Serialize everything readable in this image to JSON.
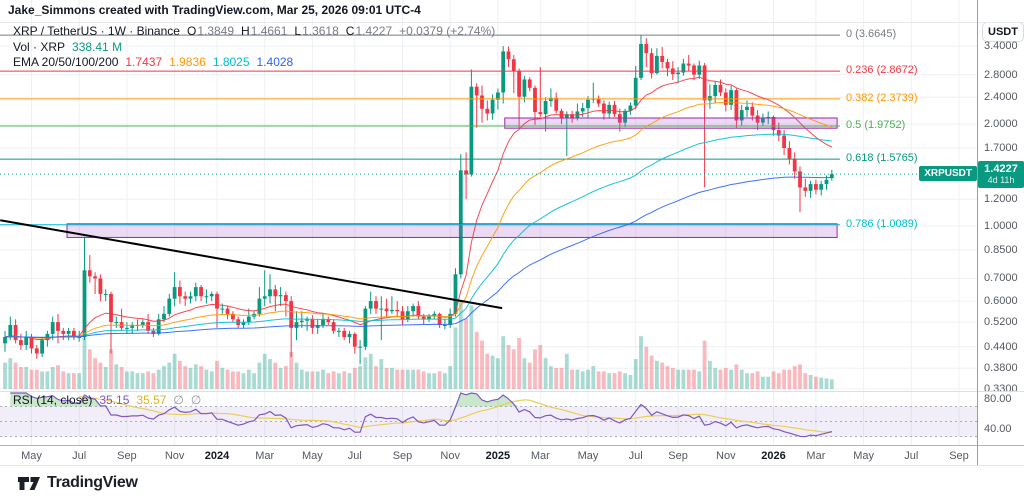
{
  "header": {
    "attribution": "Jake_Simmons created with TradingView.com, Mar 25, 2026 09:01 UTC-4"
  },
  "legend": {
    "symbol": {
      "title": "XRP / TetherUS · 1W · Binance",
      "o_label": "O",
      "open": "1.3849",
      "h_label": "H",
      "high": "1.4661",
      "l_label": "L",
      "low": "1.3618",
      "c_label": "C",
      "close": "1.4227",
      "change": "+0.0379 (+2.74%)"
    },
    "volume": {
      "label": "Vol · XRP",
      "value": "338.41 M"
    },
    "ema": {
      "label": "EMA 20/50/100/200",
      "v20": "1.7437",
      "v50": "1.9836",
      "v100": "1.8025",
      "v200": "1.4028"
    }
  },
  "rsi_legend": {
    "label": "RSI (14, close)",
    "value": "35.15",
    "ma_value": "35.57",
    "toggle1": "∅",
    "toggle2": "∅"
  },
  "price_axis": {
    "currency": "USDT"
  },
  "price_badge": {
    "symbol": "XRPUSDT",
    "price": "1.4227",
    "countdown": "4d 11h"
  },
  "footer": {
    "logo_text": "TradingView"
  },
  "colors": {
    "up": "#089981",
    "down": "#f23645",
    "ema20": "#f23645",
    "ema50": "#ff9800",
    "ema100": "#00bcd4",
    "ema200": "#2962ff",
    "rsi": "#7e57c2",
    "rsi_ma": "#d8b222",
    "trendline": "#000000",
    "zone": "#9c27b0",
    "current_price": "#089981"
  },
  "chart_data": {
    "type": "candlestick",
    "symbol": "XRPUSDT",
    "exchange": "Binance",
    "interval": "1W",
    "scale": "log",
    "first_week": "2023-03-27",
    "current_price": 1.4227,
    "ema_periods": [
      20,
      50,
      100,
      200
    ],
    "rsi": {
      "period": 14,
      "overbought": 70,
      "middle": 50,
      "oversold": 30,
      "scale_ticks": [
        {
          "label": "80.00",
          "value": 80
        },
        {
          "label": "40.00",
          "value": 40
        }
      ]
    },
    "fib_levels": [
      {
        "label": "0 (3.6645)",
        "price": 3.6645,
        "color": "#787b86"
      },
      {
        "label": "0.236 (2.8672)",
        "price": 2.8672,
        "color": "#f23645"
      },
      {
        "label": "0.382 (2.3739)",
        "price": 2.3739,
        "color": "#ff9800"
      },
      {
        "label": "0.5 (1.9752)",
        "price": 1.9752,
        "color": "#4caf50"
      },
      {
        "label": "0.618 (1.5765)",
        "price": 1.5765,
        "color": "#089981"
      },
      {
        "label": "0.786 (1.0089)",
        "price": 1.0089,
        "color": "#00bcd4"
      }
    ],
    "zones": [
      {
        "week_from": 11.7,
        "week_to": 157,
        "price_top": 1.015,
        "price_bottom": 0.925
      },
      {
        "week_from": 94.3,
        "week_to": 157,
        "price_top": 2.085,
        "price_bottom": 1.945
      }
    ],
    "trendline": {
      "week_from": -0.9,
      "price_from": 1.04,
      "week_to": 93.8,
      "price_to": 0.572
    },
    "price_ticks": [
      {
        "label": "3.4000",
        "price": 3.4
      },
      {
        "label": "2.8000",
        "price": 2.8
      },
      {
        "label": "2.4000",
        "price": 2.4
      },
      {
        "label": "2.0000",
        "price": 2.0
      },
      {
        "label": "1.7000",
        "price": 1.7
      },
      {
        "label": "1.2000",
        "price": 1.2
      },
      {
        "label": "1.0000",
        "price": 1.0
      },
      {
        "label": "0.8500",
        "price": 0.85
      },
      {
        "label": "0.7000",
        "price": 0.7
      },
      {
        "label": "0.6000",
        "price": 0.6
      },
      {
        "label": "0.5200",
        "price": 0.52
      },
      {
        "label": "0.4400",
        "price": 0.44
      },
      {
        "label": "0.3800",
        "price": 0.38
      },
      {
        "label": "0.3300",
        "price": 0.33
      }
    ],
    "time_ticks": [
      {
        "label": "May",
        "week": 5
      },
      {
        "label": "Jul",
        "week": 14
      },
      {
        "label": "Sep",
        "week": 23
      },
      {
        "label": "Nov",
        "week": 32
      },
      {
        "label": "2024",
        "week": 40,
        "year": true
      },
      {
        "label": "Mar",
        "week": 49
      },
      {
        "label": "May",
        "week": 58
      },
      {
        "label": "Jul",
        "week": 66
      },
      {
        "label": "Sep",
        "week": 75
      },
      {
        "label": "Nov",
        "week": 84
      },
      {
        "label": "2025",
        "week": 93,
        "year": true
      },
      {
        "label": "Mar",
        "week": 101
      },
      {
        "label": "May",
        "week": 110
      },
      {
        "label": "Jul",
        "week": 119
      },
      {
        "label": "Sep",
        "week": 127
      },
      {
        "label": "Nov",
        "week": 136
      },
      {
        "label": "2026",
        "week": 145,
        "year": true
      },
      {
        "label": "Mar",
        "week": 153
      },
      {
        "label": "May",
        "week": 162
      },
      {
        "label": "Jul",
        "week": 171
      },
      {
        "label": "Sep",
        "week": 180
      }
    ],
    "candles": [
      [
        0.45,
        0.49,
        0.425,
        0.47,
        30
      ],
      [
        0.47,
        0.54,
        0.46,
        0.51,
        35
      ],
      [
        0.51,
        0.53,
        0.45,
        0.46,
        30
      ],
      [
        0.46,
        0.48,
        0.43,
        0.445,
        25
      ],
      [
        0.445,
        0.49,
        0.43,
        0.47,
        25
      ],
      [
        0.47,
        0.48,
        0.42,
        0.435,
        22
      ],
      [
        0.435,
        0.445,
        0.405,
        0.42,
        22
      ],
      [
        0.42,
        0.47,
        0.41,
        0.46,
        20
      ],
      [
        0.46,
        0.49,
        0.44,
        0.48,
        20
      ],
      [
        0.48,
        0.54,
        0.46,
        0.52,
        25
      ],
      [
        0.52,
        0.55,
        0.45,
        0.49,
        27
      ],
      [
        0.49,
        0.5,
        0.46,
        0.48,
        20
      ],
      [
        0.48,
        0.5,
        0.46,
        0.49,
        18
      ],
      [
        0.49,
        0.5,
        0.46,
        0.47,
        18
      ],
      [
        0.47,
        0.49,
        0.455,
        0.47,
        18
      ],
      [
        0.47,
        0.93,
        0.46,
        0.74,
        60
      ],
      [
        0.74,
        0.82,
        0.68,
        0.71,
        45
      ],
      [
        0.71,
        0.73,
        0.63,
        0.7,
        35
      ],
      [
        0.7,
        0.72,
        0.6,
        0.63,
        30
      ],
      [
        0.63,
        0.65,
        0.6,
        0.63,
        25
      ],
      [
        0.63,
        0.64,
        0.42,
        0.52,
        45
      ],
      [
        0.52,
        0.54,
        0.5,
        0.52,
        28
      ],
      [
        0.52,
        0.57,
        0.49,
        0.5,
        25
      ],
      [
        0.5,
        0.52,
        0.48,
        0.5,
        20
      ],
      [
        0.5,
        0.52,
        0.48,
        0.51,
        20
      ],
      [
        0.51,
        0.53,
        0.49,
        0.51,
        18
      ],
      [
        0.51,
        0.53,
        0.5,
        0.52,
        18
      ],
      [
        0.52,
        0.55,
        0.48,
        0.49,
        20
      ],
      [
        0.49,
        0.5,
        0.47,
        0.48,
        18
      ],
      [
        0.48,
        0.55,
        0.475,
        0.53,
        22
      ],
      [
        0.53,
        0.58,
        0.52,
        0.55,
        26
      ],
      [
        0.55,
        0.63,
        0.54,
        0.61,
        30
      ],
      [
        0.61,
        0.73,
        0.58,
        0.66,
        40
      ],
      [
        0.66,
        0.69,
        0.59,
        0.62,
        32
      ],
      [
        0.62,
        0.64,
        0.58,
        0.61,
        26
      ],
      [
        0.61,
        0.64,
        0.59,
        0.62,
        24
      ],
      [
        0.62,
        0.68,
        0.6,
        0.66,
        28
      ],
      [
        0.66,
        0.67,
        0.6,
        0.62,
        26
      ],
      [
        0.62,
        0.65,
        0.59,
        0.62,
        22
      ],
      [
        0.62,
        0.64,
        0.6,
        0.63,
        20
      ],
      [
        0.63,
        0.64,
        0.5,
        0.57,
        32
      ],
      [
        0.57,
        0.59,
        0.55,
        0.57,
        24
      ],
      [
        0.57,
        0.58,
        0.53,
        0.55,
        22
      ],
      [
        0.55,
        0.56,
        0.52,
        0.53,
        20
      ],
      [
        0.53,
        0.54,
        0.5,
        0.51,
        20
      ],
      [
        0.51,
        0.53,
        0.5,
        0.52,
        18
      ],
      [
        0.52,
        0.57,
        0.51,
        0.54,
        22
      ],
      [
        0.54,
        0.56,
        0.53,
        0.55,
        18
      ],
      [
        0.55,
        0.66,
        0.54,
        0.61,
        30
      ],
      [
        0.61,
        0.74,
        0.58,
        0.62,
        40
      ],
      [
        0.62,
        0.72,
        0.59,
        0.65,
        34
      ],
      [
        0.65,
        0.67,
        0.56,
        0.62,
        30
      ],
      [
        0.62,
        0.66,
        0.58,
        0.625,
        24
      ],
      [
        0.625,
        0.64,
        0.54,
        0.6,
        26
      ],
      [
        0.6,
        0.62,
        0.41,
        0.5,
        42
      ],
      [
        0.5,
        0.56,
        0.46,
        0.52,
        30
      ],
      [
        0.52,
        0.56,
        0.5,
        0.525,
        22
      ],
      [
        0.525,
        0.54,
        0.49,
        0.53,
        20
      ],
      [
        0.53,
        0.545,
        0.48,
        0.5,
        20
      ],
      [
        0.5,
        0.53,
        0.48,
        0.51,
        20
      ],
      [
        0.51,
        0.55,
        0.5,
        0.53,
        22
      ],
      [
        0.53,
        0.54,
        0.51,
        0.52,
        18
      ],
      [
        0.52,
        0.53,
        0.48,
        0.49,
        20
      ],
      [
        0.49,
        0.5,
        0.47,
        0.49,
        18
      ],
      [
        0.49,
        0.5,
        0.46,
        0.47,
        20
      ],
      [
        0.47,
        0.49,
        0.45,
        0.48,
        18
      ],
      [
        0.48,
        0.485,
        0.42,
        0.44,
        24
      ],
      [
        0.44,
        0.46,
        0.39,
        0.44,
        26
      ],
      [
        0.44,
        0.58,
        0.43,
        0.57,
        36
      ],
      [
        0.57,
        0.64,
        0.55,
        0.6,
        40
      ],
      [
        0.6,
        0.62,
        0.55,
        0.57,
        26
      ],
      [
        0.57,
        0.62,
        0.46,
        0.57,
        34
      ],
      [
        0.57,
        0.61,
        0.54,
        0.56,
        24
      ],
      [
        0.56,
        0.62,
        0.55,
        0.565,
        24
      ],
      [
        0.565,
        0.6,
        0.54,
        0.56,
        22
      ],
      [
        0.56,
        0.58,
        0.51,
        0.53,
        22
      ],
      [
        0.53,
        0.58,
        0.52,
        0.56,
        22
      ],
      [
        0.56,
        0.59,
        0.54,
        0.58,
        22
      ],
      [
        0.58,
        0.6,
        0.53,
        0.54,
        22
      ],
      [
        0.54,
        0.55,
        0.51,
        0.53,
        20
      ],
      [
        0.53,
        0.55,
        0.52,
        0.54,
        18
      ],
      [
        0.54,
        0.56,
        0.53,
        0.55,
        18
      ],
      [
        0.55,
        0.555,
        0.5,
        0.51,
        20
      ],
      [
        0.51,
        0.53,
        0.495,
        0.51,
        18
      ],
      [
        0.51,
        0.57,
        0.5,
        0.55,
        26
      ],
      [
        0.55,
        0.75,
        0.54,
        0.72,
        70
      ],
      [
        0.72,
        1.63,
        0.7,
        1.46,
        100
      ],
      [
        1.46,
        1.65,
        1.2,
        1.42,
        80
      ],
      [
        1.42,
        2.9,
        1.4,
        2.58,
        95
      ],
      [
        2.58,
        2.64,
        1.95,
        2.43,
        65
      ],
      [
        2.43,
        2.6,
        2.02,
        2.22,
        55
      ],
      [
        2.22,
        2.35,
        2.05,
        2.15,
        40
      ],
      [
        2.15,
        2.45,
        2.06,
        2.36,
        38
      ],
      [
        2.36,
        2.55,
        2.21,
        2.48,
        35
      ],
      [
        2.48,
        3.4,
        2.3,
        3.28,
        60
      ],
      [
        3.28,
        3.39,
        2.95,
        3.11,
        50
      ],
      [
        3.11,
        3.2,
        2.47,
        2.87,
        45
      ],
      [
        2.87,
        2.92,
        1.94,
        2.41,
        58
      ],
      [
        2.41,
        2.78,
        2.32,
        2.71,
        35
      ],
      [
        2.71,
        2.75,
        2.5,
        2.56,
        30
      ],
      [
        2.56,
        2.6,
        1.99,
        2.17,
        45
      ],
      [
        2.17,
        2.95,
        2.1,
        2.14,
        50
      ],
      [
        2.14,
        2.4,
        1.9,
        2.34,
        35
      ],
      [
        2.34,
        2.55,
        2.25,
        2.39,
        26
      ],
      [
        2.39,
        2.48,
        2.15,
        2.19,
        24
      ],
      [
        2.19,
        2.22,
        2.0,
        2.08,
        24
      ],
      [
        2.08,
        2.18,
        1.61,
        2.14,
        40
      ],
      [
        2.14,
        2.19,
        2.02,
        2.08,
        22
      ],
      [
        2.08,
        2.3,
        2.05,
        2.18,
        22
      ],
      [
        2.18,
        2.31,
        2.1,
        2.23,
        20
      ],
      [
        2.23,
        2.42,
        2.08,
        2.36,
        22
      ],
      [
        2.36,
        2.65,
        2.31,
        2.38,
        26
      ],
      [
        2.38,
        2.43,
        2.25,
        2.3,
        20
      ],
      [
        2.3,
        2.35,
        2.06,
        2.15,
        20
      ],
      [
        2.15,
        2.33,
        2.08,
        2.28,
        18
      ],
      [
        2.28,
        2.34,
        2.1,
        2.14,
        18
      ],
      [
        2.14,
        2.22,
        1.9,
        2.02,
        20
      ],
      [
        2.02,
        2.22,
        1.96,
        2.19,
        18
      ],
      [
        2.19,
        2.32,
        2.13,
        2.27,
        16
      ],
      [
        2.27,
        2.97,
        2.21,
        2.74,
        34
      ],
      [
        2.74,
        3.66,
        2.7,
        3.45,
        60
      ],
      [
        3.45,
        3.59,
        2.95,
        3.24,
        48
      ],
      [
        3.24,
        3.35,
        2.73,
        2.83,
        38
      ],
      [
        2.83,
        3.35,
        2.8,
        3.18,
        32
      ],
      [
        3.18,
        3.38,
        2.92,
        3.05,
        30
      ],
      [
        3.05,
        3.12,
        2.77,
        2.92,
        26
      ],
      [
        2.92,
        3.07,
        2.7,
        2.81,
        24
      ],
      [
        2.81,
        2.95,
        2.65,
        2.84,
        22
      ],
      [
        2.84,
        3.12,
        2.78,
        3.02,
        22
      ],
      [
        3.02,
        3.2,
        2.86,
        2.98,
        22
      ],
      [
        2.98,
        3.02,
        2.7,
        2.8,
        22
      ],
      [
        2.8,
        3.08,
        2.72,
        2.98,
        20
      ],
      [
        2.98,
        3.03,
        1.3,
        2.35,
        55
      ],
      [
        2.35,
        2.62,
        2.22,
        2.42,
        32
      ],
      [
        2.42,
        2.68,
        2.3,
        2.61,
        24
      ],
      [
        2.61,
        2.71,
        2.42,
        2.48,
        22
      ],
      [
        2.48,
        2.55,
        2.18,
        2.28,
        24
      ],
      [
        2.28,
        2.6,
        2.2,
        2.52,
        22
      ],
      [
        2.52,
        2.55,
        1.95,
        2.05,
        28
      ],
      [
        2.05,
        2.28,
        1.98,
        2.2,
        22
      ],
      [
        2.2,
        2.35,
        2.1,
        2.25,
        18
      ],
      [
        2.25,
        2.32,
        2.05,
        2.12,
        18
      ],
      [
        2.12,
        2.2,
        1.92,
        2.02,
        20
      ],
      [
        2.02,
        2.15,
        1.98,
        2.08,
        14
      ],
      [
        2.08,
        2.18,
        2.0,
        2.1,
        14
      ],
      [
        2.1,
        2.12,
        1.85,
        1.92,
        20
      ],
      [
        1.92,
        2.02,
        1.78,
        1.85,
        18
      ],
      [
        1.85,
        1.92,
        1.62,
        1.7,
        22
      ],
      [
        1.7,
        1.78,
        1.52,
        1.58,
        22
      ],
      [
        1.58,
        1.65,
        1.38,
        1.45,
        26
      ],
      [
        1.45,
        1.5,
        1.1,
        1.3,
        28
      ],
      [
        1.3,
        1.38,
        1.22,
        1.27,
        18
      ],
      [
        1.27,
        1.36,
        1.21,
        1.33,
        16
      ],
      [
        1.33,
        1.37,
        1.24,
        1.28,
        14
      ],
      [
        1.28,
        1.36,
        1.23,
        1.33,
        13
      ],
      [
        1.33,
        1.41,
        1.28,
        1.37,
        12
      ],
      [
        1.3849,
        1.4661,
        1.3618,
        1.4227,
        11
      ]
    ]
  }
}
